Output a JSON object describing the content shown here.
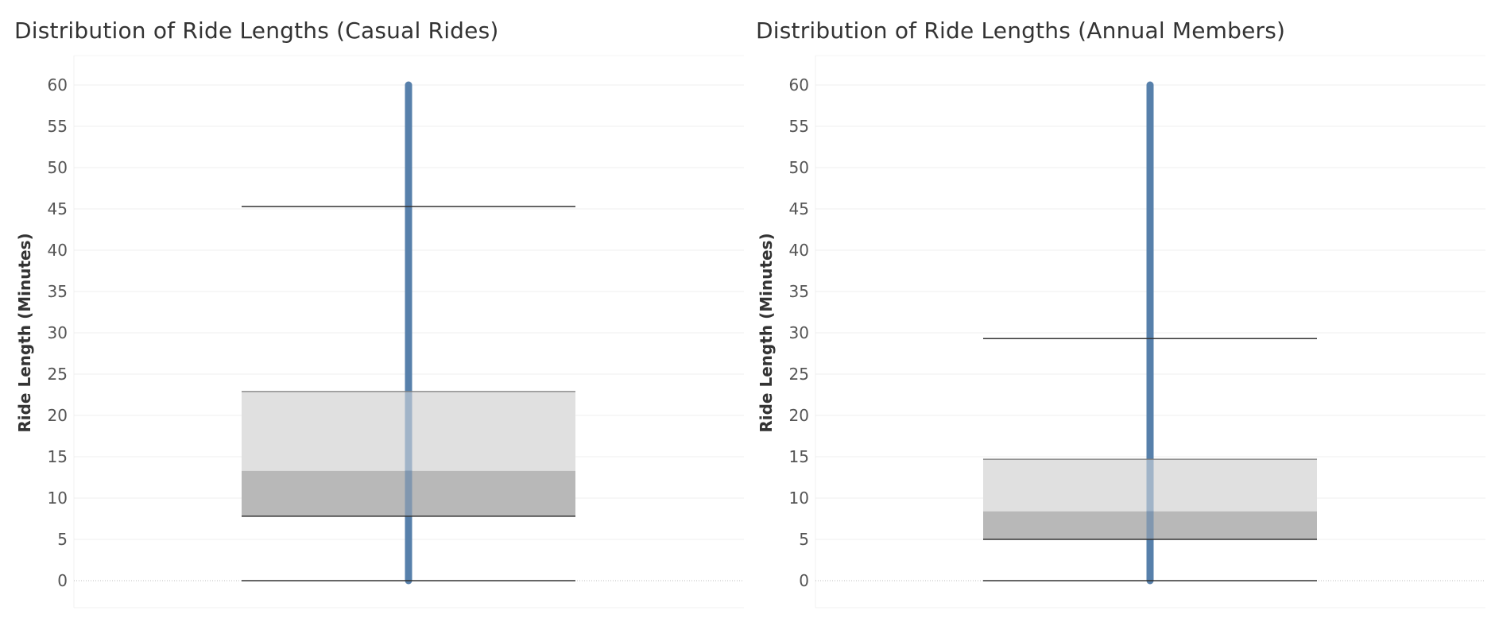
{
  "chart_data": [
    {
      "type": "box",
      "title": "Distribution of Ride Lengths (Casual Rides)",
      "xlabel": "",
      "ylabel": "Ride Length (Minutes)",
      "ylim": [
        0,
        60
      ],
      "yticks": [
        "0",
        "5",
        "10",
        "15",
        "20",
        "25",
        "30",
        "35",
        "40",
        "45",
        "50",
        "55",
        "60"
      ],
      "grid": true,
      "box": {
        "whisker_low": 0,
        "q1": 7.8,
        "median": 13.3,
        "q3": 22.9,
        "whisker_high": 45.3
      },
      "points_range": [
        0,
        60
      ],
      "colors": {
        "points": "#4e79a7",
        "box_lower": "#b8b8b8",
        "box_upper": "#e0e0e0",
        "whisker": "#333333",
        "grid": "#efefef"
      }
    },
    {
      "type": "box",
      "title": "Distribution of Ride Lengths (Annual Members)",
      "xlabel": "",
      "ylabel": "Ride Length (Minutes)",
      "ylim": [
        0,
        60
      ],
      "yticks": [
        "0",
        "5",
        "10",
        "15",
        "20",
        "25",
        "30",
        "35",
        "40",
        "45",
        "50",
        "55",
        "60"
      ],
      "grid": true,
      "box": {
        "whisker_low": 0,
        "q1": 5.0,
        "median": 8.4,
        "q3": 14.7,
        "whisker_high": 29.3
      },
      "points_range": [
        0,
        60
      ],
      "colors": {
        "points": "#4e79a7",
        "box_lower": "#b8b8b8",
        "box_upper": "#e0e0e0",
        "whisker": "#333333",
        "grid": "#efefef"
      }
    }
  ]
}
